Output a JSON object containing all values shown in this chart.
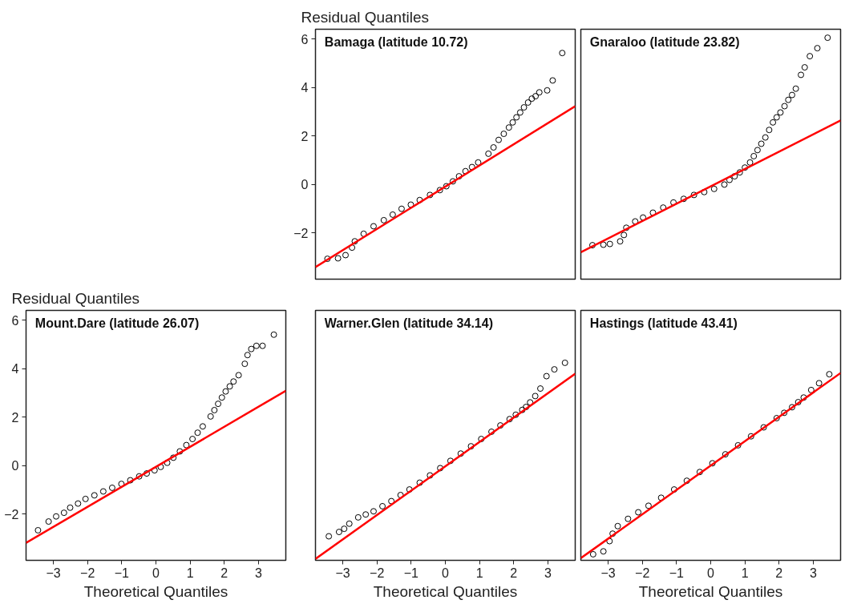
{
  "chart_data": [
    {
      "type": "scatter",
      "title": "Bamaga (latitude 10.72)",
      "ylabel": "Residual Quantiles",
      "xlim": [
        -3.8,
        3.8
      ],
      "ylim": [
        -3.9,
        6.4
      ],
      "yticks": [
        -2,
        0,
        2,
        4,
        6
      ],
      "tick_labels": "y",
      "grid": false,
      "series": [
        {
          "color": "#000000",
          "marker": "circle",
          "x": [
            -3.45,
            -3.14,
            -2.92,
            -2.73,
            -2.65,
            -2.39,
            -2.1,
            -1.8,
            -1.54,
            -1.28,
            -1.01,
            -0.75,
            -0.45,
            -0.16,
            0.03,
            0.22,
            0.4,
            0.59,
            0.78,
            0.96,
            1.26,
            1.41,
            1.56,
            1.71,
            1.86,
            1.97,
            2.08,
            2.19,
            2.3,
            2.42,
            2.53,
            2.64,
            2.75,
            2.98,
            3.14,
            3.42
          ],
          "values": [
            -3.06,
            -3.04,
            -2.91,
            -2.6,
            -2.34,
            -2.03,
            -1.72,
            -1.47,
            -1.24,
            -1.0,
            -0.83,
            -0.64,
            -0.43,
            -0.23,
            -0.07,
            0.13,
            0.34,
            0.55,
            0.72,
            0.91,
            1.27,
            1.53,
            1.84,
            2.09,
            2.35,
            2.56,
            2.77,
            2.97,
            3.18,
            3.38,
            3.54,
            3.64,
            3.8,
            3.88,
            4.29,
            5.42
          ]
        },
        {
          "type": "line",
          "color": "#ff0000",
          "x": [
            -3.8,
            3.8
          ],
          "values": [
            -3.4,
            3.23
          ]
        }
      ]
    },
    {
      "type": "scatter",
      "title": "Gnaraloo (latitude 23.82)",
      "xlim": [
        -3.8,
        3.8
      ],
      "ylim": [
        -3.9,
        6.4
      ],
      "tick_labels": false,
      "grid": false,
      "series": [
        {
          "color": "#000000",
          "marker": "circle",
          "x": [
            -3.46,
            -3.14,
            -2.95,
            -2.65,
            -2.54,
            -2.47,
            -2.21,
            -1.98,
            -1.69,
            -1.39,
            -1.09,
            -0.79,
            -0.49,
            -0.19,
            0.1,
            0.4,
            0.55,
            0.7,
            0.85,
            1.0,
            1.15,
            1.26,
            1.37,
            1.48,
            1.6,
            1.71,
            1.82,
            1.93,
            2.04,
            2.16,
            2.27,
            2.38,
            2.49,
            2.64,
            2.75,
            2.9,
            3.12,
            3.42
          ],
          "values": [
            -2.5,
            -2.48,
            -2.45,
            -2.34,
            -2.08,
            -1.78,
            -1.52,
            -1.36,
            -1.16,
            -0.95,
            -0.74,
            -0.59,
            -0.43,
            -0.31,
            -0.18,
            0.0,
            0.19,
            0.34,
            0.5,
            0.7,
            0.91,
            1.17,
            1.42,
            1.68,
            1.94,
            2.25,
            2.56,
            2.77,
            2.97,
            3.23,
            3.49,
            3.69,
            3.95,
            4.52,
            4.83,
            5.29,
            5.62,
            6.05
          ]
        },
        {
          "type": "line",
          "color": "#ff0000",
          "x": [
            -3.8,
            3.8
          ],
          "values": [
            -2.79,
            2.64
          ]
        }
      ]
    },
    {
      "type": "scatter",
      "title": "Mount.Dare (latitude 26.07)",
      "ylabel": "Residual Quantiles",
      "xlabel": "Theoretical Quantiles",
      "xlim": [
        -3.8,
        3.8
      ],
      "ylim": [
        -3.9,
        6.4
      ],
      "xticks": [
        -3,
        -2,
        -1,
        0,
        1,
        2,
        3
      ],
      "yticks": [
        -2,
        0,
        2,
        4,
        6
      ],
      "grid": false,
      "series": [
        {
          "color": "#000000",
          "marker": "circle",
          "x": [
            -3.45,
            -3.14,
            -2.92,
            -2.69,
            -2.51,
            -2.28,
            -2.06,
            -1.8,
            -1.54,
            -1.28,
            -1.01,
            -0.75,
            -0.49,
            -0.27,
            -0.04,
            0.14,
            0.33,
            0.51,
            0.7,
            0.89,
            1.07,
            1.22,
            1.37,
            1.6,
            1.71,
            1.82,
            1.93,
            2.04,
            2.16,
            2.27,
            2.42,
            2.6,
            2.68,
            2.79,
            2.94,
            3.12,
            3.45
          ],
          "values": [
            -2.66,
            -2.3,
            -2.09,
            -1.94,
            -1.73,
            -1.56,
            -1.37,
            -1.22,
            -1.06,
            -0.91,
            -0.75,
            -0.6,
            -0.44,
            -0.32,
            -0.19,
            -0.05,
            0.12,
            0.33,
            0.59,
            0.85,
            1.1,
            1.36,
            1.62,
            2.03,
            2.29,
            2.55,
            2.81,
            3.06,
            3.27,
            3.47,
            3.73,
            4.2,
            4.56,
            4.81,
            4.94,
            4.94,
            5.4
          ]
        },
        {
          "type": "line",
          "color": "#ff0000",
          "x": [
            -3.8,
            3.8
          ],
          "values": [
            -3.18,
            3.09
          ]
        }
      ]
    },
    {
      "type": "scatter",
      "title": "Warner.Glen (latitude 34.14)",
      "xlabel": "Theoretical Quantiles",
      "xlim": [
        -3.8,
        3.8
      ],
      "ylim": [
        -3.9,
        6.4
      ],
      "xticks": [
        -3,
        -2,
        -1,
        0,
        1,
        2,
        3
      ],
      "tick_labels": "x",
      "grid": false,
      "series": [
        {
          "color": "#000000",
          "marker": "circle",
          "x": [
            -3.41,
            -3.11,
            -2.96,
            -2.81,
            -2.55,
            -2.33,
            -2.1,
            -1.84,
            -1.58,
            -1.31,
            -1.05,
            -0.75,
            -0.45,
            -0.15,
            0.15,
            0.45,
            0.75,
            1.05,
            1.35,
            1.61,
            1.88,
            2.06,
            2.25,
            2.36,
            2.48,
            2.63,
            2.78,
            2.96,
            3.19,
            3.5
          ],
          "values": [
            -2.91,
            -2.73,
            -2.6,
            -2.39,
            -2.13,
            -2.01,
            -1.88,
            -1.67,
            -1.46,
            -1.21,
            -0.98,
            -0.7,
            -0.4,
            -0.1,
            0.2,
            0.5,
            0.8,
            1.1,
            1.4,
            1.66,
            1.92,
            2.1,
            2.3,
            2.42,
            2.61,
            2.87,
            3.18,
            3.69,
            3.97,
            4.24
          ]
        },
        {
          "type": "line",
          "color": "#ff0000",
          "x": [
            -3.8,
            3.8
          ],
          "values": [
            -3.84,
            3.79
          ]
        }
      ]
    },
    {
      "type": "scatter",
      "title": "Hastings (latitude 43.41)",
      "xlabel": "Theoretical Quantiles",
      "xlim": [
        -3.8,
        3.8
      ],
      "ylim": [
        -3.9,
        6.4
      ],
      "xticks": [
        -3,
        -2,
        -1,
        0,
        1,
        2,
        3
      ],
      "tick_labels": "x",
      "grid": false,
      "series": [
        {
          "color": "#000000",
          "marker": "circle",
          "x": [
            -3.44,
            -3.14,
            -2.96,
            -2.87,
            -2.72,
            -2.42,
            -2.12,
            -1.82,
            -1.45,
            -1.07,
            -0.7,
            -0.32,
            0.05,
            0.43,
            0.8,
            1.18,
            1.55,
            1.93,
            2.15,
            2.38,
            2.56,
            2.72,
            2.94,
            3.17,
            3.47
          ],
          "values": [
            -3.65,
            -3.53,
            -3.11,
            -2.8,
            -2.49,
            -2.19,
            -1.92,
            -1.65,
            -1.32,
            -0.98,
            -0.62,
            -0.26,
            0.1,
            0.47,
            0.84,
            1.21,
            1.58,
            1.96,
            2.18,
            2.41,
            2.62,
            2.81,
            3.12,
            3.4,
            3.77
          ]
        },
        {
          "type": "line",
          "color": "#ff0000",
          "x": [
            -3.8,
            3.8
          ],
          "values": [
            -3.81,
            3.82
          ]
        }
      ]
    }
  ]
}
